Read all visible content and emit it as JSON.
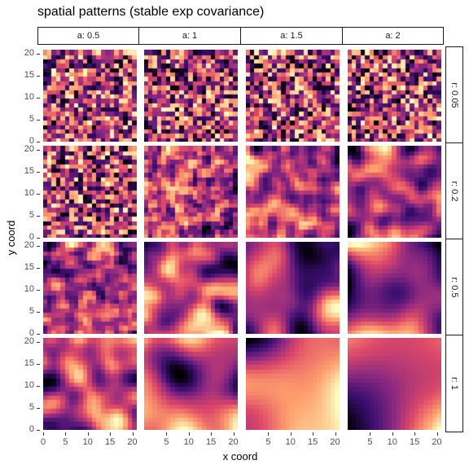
{
  "chart_data": {
    "type": "heatmap",
    "title": "spatial patterns (stable exp covariance)",
    "xlabel": "x coord",
    "ylabel": "y coord",
    "facet_columns": [
      "a: 0.5",
      "a: 1",
      "a: 1.5",
      "a: 2"
    ],
    "facet_rows": [
      "r: 0.05",
      "r: 0.2",
      "r: 0.5",
      "r: 1"
    ],
    "x_ticks": [
      0,
      5,
      10,
      15,
      20
    ],
    "y_ticks": [
      0,
      5,
      10,
      15,
      20
    ],
    "xlim": [
      0,
      21
    ],
    "ylim": [
      0,
      21
    ],
    "grid_cells_per_side": 21,
    "colormap": "magma",
    "colormap_stops": [
      "#000004",
      "#3b0f70",
      "#8c2981",
      "#de4968",
      "#fe9f6d",
      "#fcfdbf"
    ],
    "legend": "none"
  }
}
